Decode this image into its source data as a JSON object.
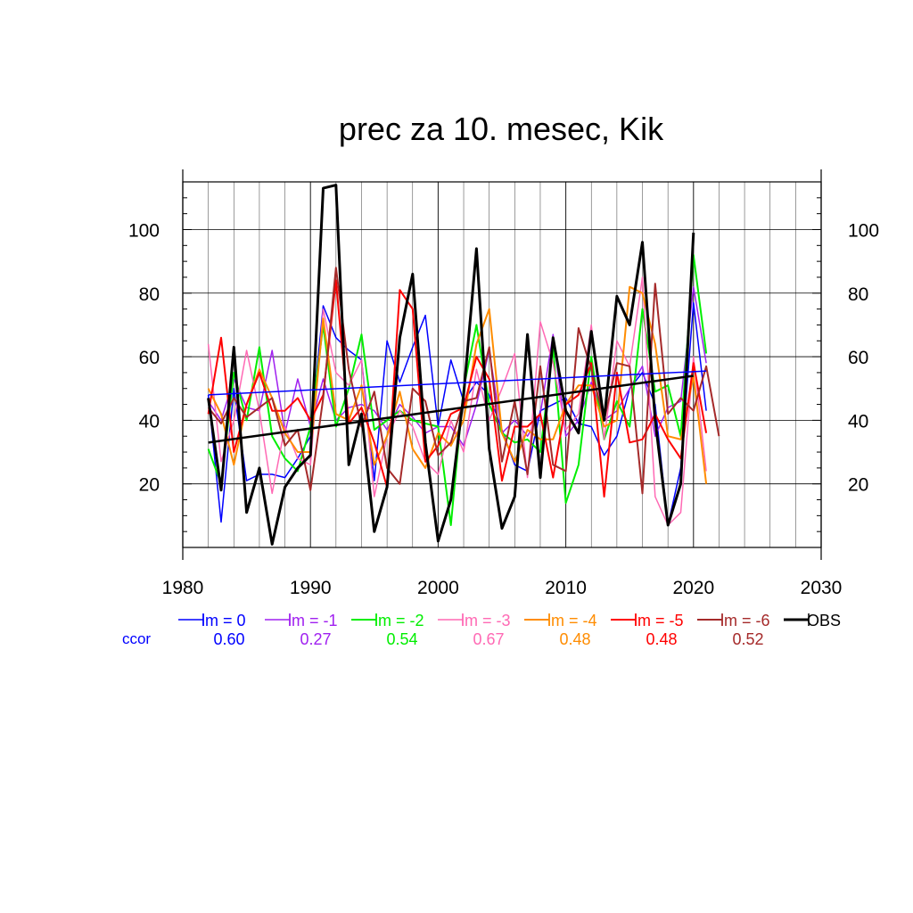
{
  "chart_data": {
    "type": "line",
    "title": "prec za 10. mesec, Kik",
    "xlim": [
      1980,
      2030
    ],
    "ylim": [
      0,
      115
    ],
    "x_ticks": [
      "1980",
      "1990",
      "2000",
      "2010",
      "2020",
      "2030"
    ],
    "y_ticks": [
      "20",
      "40",
      "60",
      "80",
      "100"
    ],
    "grid": true,
    "legend_position": "bottom",
    "ccor_label": "ccor",
    "series": [
      {
        "name": "lm = 0",
        "ccor": "0.60",
        "color": "#0000ff",
        "width": 1.5,
        "x": [
          1982,
          1983,
          1984,
          1985,
          1986,
          1987,
          1988,
          1989,
          1990,
          1991,
          1992,
          1993,
          1994,
          1995,
          1996,
          1997,
          1998,
          1999,
          2000,
          2001,
          2002,
          2003,
          2004,
          2005,
          2006,
          2007,
          2008,
          2009,
          2010,
          2011,
          2012,
          2013,
          2014,
          2015,
          2016,
          2017,
          2018,
          2019,
          2020,
          2021
        ],
        "y": [
          48,
          8,
          50,
          21,
          23,
          23,
          22,
          28,
          35,
          76,
          66,
          62,
          59,
          21,
          65,
          52,
          63,
          73,
          38,
          59,
          46,
          52,
          48,
          37,
          26,
          24,
          43,
          45,
          47,
          39,
          38,
          29,
          35,
          50,
          55,
          45,
          7,
          25,
          77,
          43
        ]
      },
      {
        "name": "lm = -1",
        "ccor": "0.27",
        "color": "#a020f0",
        "width": 1.5,
        "x": [
          1982,
          1983,
          1984,
          1985,
          1986,
          1987,
          1988,
          1989,
          1990,
          1991,
          1992,
          1993,
          1994,
          1995,
          1996,
          1997,
          1998,
          1999,
          2000,
          2001,
          2002,
          2003,
          2004,
          2005,
          2006,
          2007,
          2008,
          2009,
          2010,
          2011,
          2012,
          2013,
          2014,
          2015,
          2016,
          2017,
          2018,
          2019,
          2020,
          2021
        ],
        "y": [
          46,
          40,
          53,
          44,
          43,
          62,
          36,
          53,
          38,
          53,
          40,
          44,
          45,
          43,
          37,
          45,
          41,
          36,
          38,
          38,
          32,
          45,
          62,
          36,
          40,
          35,
          42,
          67,
          35,
          40,
          52,
          40,
          43,
          50,
          57,
          35,
          44,
          46,
          82,
          58
        ]
      },
      {
        "name": "lm = -2",
        "ccor": "0.54",
        "color": "#00ee00",
        "width": 2,
        "x": [
          1982,
          1983,
          1984,
          1985,
          1986,
          1987,
          1988,
          1989,
          1990,
          1991,
          1992,
          1993,
          1994,
          1995,
          1996,
          1997,
          1998,
          1999,
          2000,
          2001,
          2002,
          2003,
          2004,
          2005,
          2006,
          2007,
          2008,
          2009,
          2010,
          2011,
          2012,
          2013,
          2014,
          2015,
          2016,
          2017,
          2018,
          2019,
          2020,
          2021
        ],
        "y": [
          31,
          20,
          55,
          40,
          63,
          35,
          28,
          24,
          38,
          70,
          38,
          50,
          67,
          37,
          40,
          43,
          40,
          39,
          38,
          7,
          50,
          70,
          45,
          36,
          33,
          34,
          30,
          63,
          14,
          26,
          60,
          34,
          46,
          38,
          75,
          49,
          51,
          35,
          92,
          61
        ]
      },
      {
        "name": "lm = -3",
        "ccor": "0.67",
        "color": "#ff69b4",
        "width": 1.5,
        "x": [
          1982,
          1983,
          1984,
          1985,
          1986,
          1987,
          1988,
          1989,
          1990,
          1991,
          1992,
          1993,
          1994,
          1995,
          1996,
          1997,
          1998,
          1999,
          2000,
          2001,
          2002,
          2003,
          2004,
          2005,
          2006,
          2007,
          2008,
          2009,
          2010,
          2011,
          2012,
          2013,
          2014,
          2015,
          2016,
          2017,
          2018,
          2019,
          2020,
          2021
        ],
        "y": [
          64,
          27,
          40,
          62,
          43,
          17,
          38,
          28,
          26,
          75,
          55,
          51,
          59,
          16,
          35,
          43,
          38,
          27,
          23,
          40,
          30,
          56,
          40,
          50,
          61,
          22,
          71,
          58,
          37,
          42,
          70,
          34,
          65,
          57,
          85,
          16,
          7,
          11,
          60,
          24
        ]
      },
      {
        "name": "lm = -4",
        "ccor": "0.48",
        "color": "#ff8c00",
        "width": 2,
        "x": [
          1982,
          1983,
          1984,
          1985,
          1986,
          1987,
          1988,
          1989,
          1990,
          1991,
          1992,
          1993,
          1994,
          1995,
          1996,
          1997,
          1998,
          1999,
          2000,
          2001,
          2002,
          2003,
          2004,
          2005,
          2006,
          2007,
          2008,
          2009,
          2010,
          2011,
          2012,
          2013,
          2014,
          2015,
          2016,
          2017,
          2018,
          2019,
          2020,
          2021
        ],
        "y": [
          50,
          42,
          26,
          45,
          56,
          47,
          36,
          30,
          30,
          72,
          42,
          40,
          51,
          26,
          35,
          49,
          31,
          25,
          36,
          32,
          40,
          64,
          75,
          36,
          27,
          37,
          34,
          34,
          45,
          51,
          51,
          38,
          40,
          82,
          80,
          64,
          35,
          34,
          54,
          20
        ]
      },
      {
        "name": "lm = -5",
        "ccor": "0.48",
        "color": "#ff0000",
        "width": 2,
        "x": [
          1982,
          1983,
          1984,
          1985,
          1986,
          1987,
          1988,
          1989,
          1990,
          1991,
          1992,
          1993,
          1994,
          1995,
          1996,
          1997,
          1998,
          1999,
          2000,
          2001,
          2002,
          2003,
          2004,
          2005,
          2006,
          2007,
          2008,
          2009,
          2010,
          2011,
          2012,
          2013,
          2014,
          2015,
          2016,
          2017,
          2018,
          2019,
          2020,
          2021
        ],
        "y": [
          42,
          66,
          30,
          45,
          55,
          43,
          43,
          47,
          40,
          48,
          84,
          39,
          44,
          33,
          19,
          81,
          75,
          27,
          32,
          42,
          44,
          60,
          53,
          21,
          38,
          38,
          42,
          22,
          45,
          48,
          58,
          16,
          55,
          33,
          34,
          42,
          34,
          28,
          58,
          36
        ]
      },
      {
        "name": "lm = -6",
        "ccor": "0.52",
        "color": "#a52a2a",
        "width": 2,
        "x": [
          1982,
          1983,
          1984,
          1985,
          1986,
          1987,
          1988,
          1989,
          1990,
          1991,
          1992,
          1993,
          1994,
          1995,
          1996,
          1997,
          1998,
          1999,
          2000,
          2001,
          2002,
          2003,
          2004,
          2005,
          2006,
          2007,
          2008,
          2009,
          2010,
          2011,
          2012,
          2013,
          2014,
          2015,
          2016,
          2017,
          2018,
          2019,
          2020,
          2021,
          2022
        ],
        "y": [
          44,
          39,
          47,
          41,
          44,
          47,
          32,
          37,
          18,
          47,
          88,
          56,
          38,
          49,
          25,
          20,
          50,
          46,
          29,
          33,
          46,
          47,
          63,
          27,
          46,
          23,
          57,
          26,
          24,
          69,
          56,
          40,
          58,
          57,
          17,
          83,
          42,
          47,
          43,
          57,
          35
        ]
      },
      {
        "name": "OBS",
        "color": "#000000",
        "width": 3,
        "x": [
          1982,
          1983,
          1984,
          1985,
          1986,
          1987,
          1988,
          1989,
          1990,
          1991,
          1992,
          1993,
          1994,
          1995,
          1996,
          1997,
          1998,
          1999,
          2000,
          2001,
          2002,
          2003,
          2004,
          2005,
          2006,
          2007,
          2008,
          2009,
          2010,
          2011,
          2012,
          2013,
          2014,
          2015,
          2016,
          2017,
          2018,
          2019,
          2020
        ],
        "y": [
          47,
          18,
          63,
          11,
          25,
          1,
          19,
          25,
          29,
          113,
          114,
          26,
          42,
          5,
          19,
          66,
          86,
          33,
          2,
          15,
          48,
          94,
          31,
          6,
          16,
          67,
          22,
          66,
          43,
          36,
          68,
          40,
          79,
          70,
          96,
          40,
          7,
          20,
          99
        ]
      }
    ],
    "trend_lines": [
      {
        "name": "lm = 0 trend",
        "color": "#0000ff",
        "width": 1.5,
        "x": [
          1982,
          2021
        ],
        "y": [
          48,
          55.5
        ]
      },
      {
        "name": "OBS trend",
        "color": "#000000",
        "width": 2.5,
        "x": [
          1982,
          2020
        ],
        "y": [
          33,
          54
        ]
      }
    ]
  }
}
